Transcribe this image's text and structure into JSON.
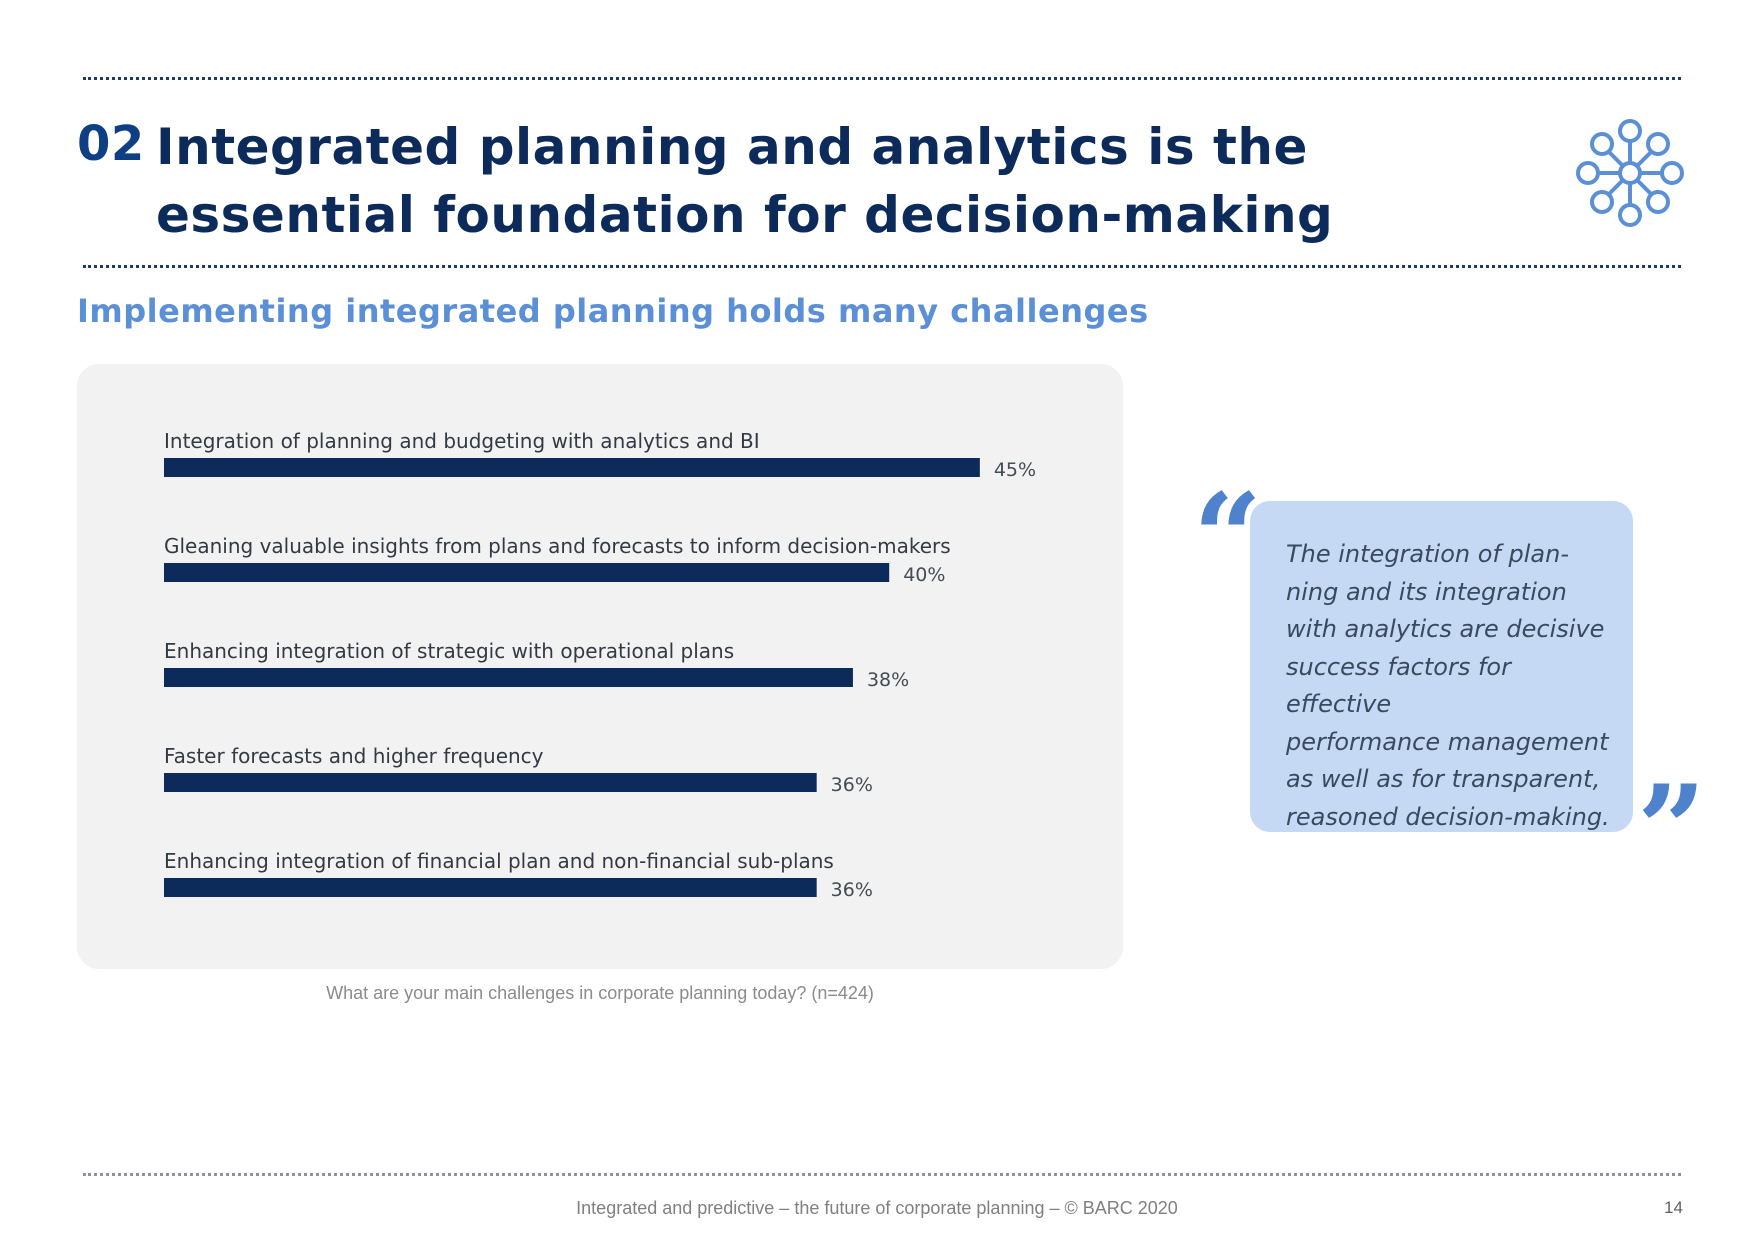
{
  "header": {
    "section_number": "02",
    "title": "Integrated planning and analytics is the essential foundation for decision-making",
    "icon": "network-icon"
  },
  "subtitle": "Implementing integrated planning holds many challenges",
  "chart_data": {
    "type": "bar",
    "orientation": "horizontal",
    "categories": [
      "Integration of planning and budgeting with analytics and BI",
      "Gleaning valuable insights from plans and forecasts to inform decision-makers",
      "Enhancing integration of strategic with operational plans",
      "Faster forecasts and higher frequency",
      "Enhancing integration of financial plan and non-financial sub-plans"
    ],
    "values": [
      45,
      40,
      38,
      36,
      36
    ],
    "value_labels": [
      "45%",
      "40%",
      "38%",
      "36%",
      "36%"
    ],
    "unit": "%",
    "xlim": [
      0,
      100
    ],
    "grid": false,
    "legend": "none",
    "bar_color": "#0c2a5a"
  },
  "chart_caption": "What are your main challenges in corporate planning today? (n=424)",
  "quote": {
    "open_mark": "“",
    "close_mark": "”",
    "text": "The integration of plan-\nning and its integration\nwith analytics are decisive\nsuccess factors for effective\nperformance management\nas well as for transparent,\nreasoned decision-making."
  },
  "footer": {
    "text": "Integrated and predictive – the future of corporate planning  – © BARC 2020",
    "page_number": "14"
  },
  "colors": {
    "title": "#0c2a5a",
    "section_number": "#0e3f84",
    "subtitle": "#5b8fd6",
    "accent": "#4f82cc",
    "quote_box": "#c5d8f4",
    "panel": "#f2f2f2"
  }
}
